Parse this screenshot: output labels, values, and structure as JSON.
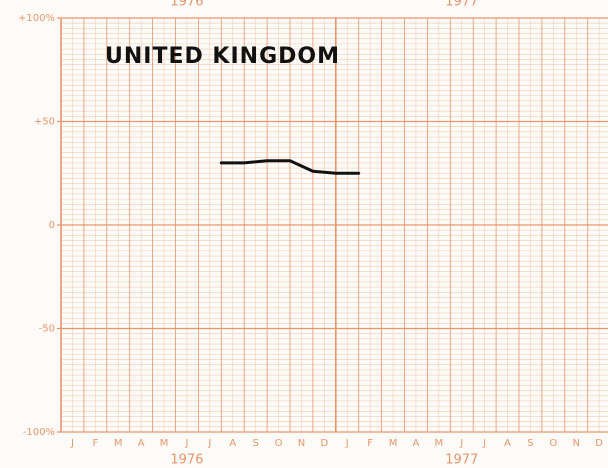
{
  "chart_data": {
    "type": "line",
    "title": "UNITED KINGDOM",
    "categories": [
      "J",
      "F",
      "M",
      "A",
      "M",
      "J",
      "J",
      "A",
      "S",
      "O",
      "N",
      "D",
      "J",
      "F",
      "M",
      "A",
      "M",
      "J",
      "J",
      "A",
      "S",
      "O",
      "N",
      "D"
    ],
    "years": [
      "1976",
      "1977"
    ],
    "series": [
      {
        "color": "#111111",
        "values": [
          null,
          null,
          null,
          null,
          null,
          null,
          30,
          30,
          31,
          31,
          26,
          25,
          25,
          null,
          null,
          null,
          null,
          null,
          null,
          null,
          null,
          null,
          null,
          null
        ]
      }
    ],
    "ylim": [
      -100,
      100
    ],
    "yticks": [
      {
        "value": -100,
        "label": "-100%"
      },
      -50,
      0,
      {
        "value": 50,
        "label": "+50"
      },
      {
        "value": 100,
        "label": "+100%"
      }
    ],
    "grid": true,
    "grid_color": "#e8956a"
  }
}
